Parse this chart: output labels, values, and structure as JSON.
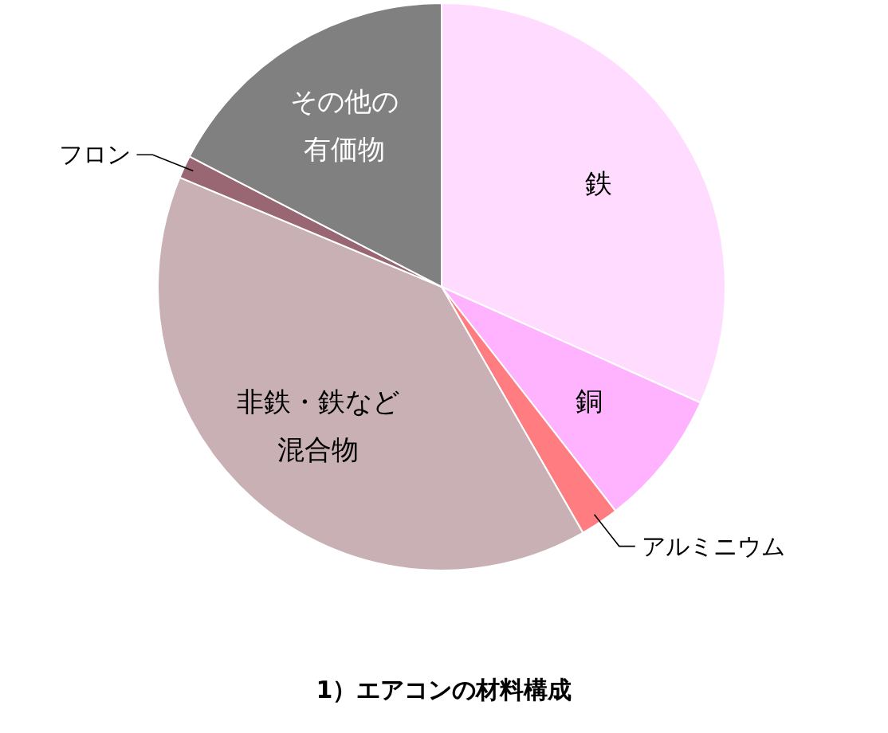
{
  "chart_data": {
    "type": "pie",
    "title": "1）エアコンの材料構成",
    "categories": [
      "鉄",
      "銅",
      "アルミニウム",
      "非鉄・鉄など混合物",
      "フロン",
      "その他の有価物"
    ],
    "values": [
      31.7,
      7.8,
      2.2,
      39.6,
      1.3,
      17.4
    ],
    "colors": [
      "#ffdcff",
      "#ffb3ff",
      "#ff7c80",
      "#c9b0b5",
      "#996673",
      "#808080"
    ]
  }
}
